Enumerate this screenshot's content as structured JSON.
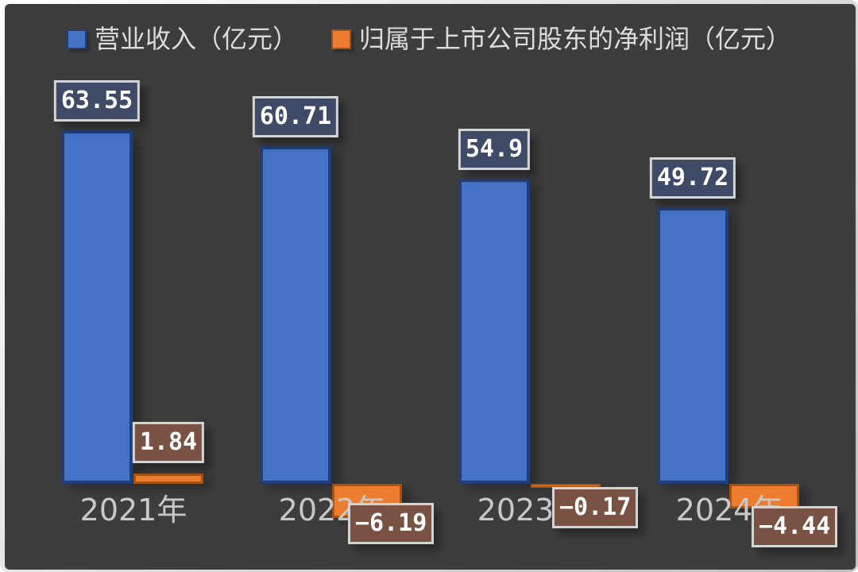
{
  "chart_data": {
    "type": "bar",
    "title": "",
    "categories": [
      "2021年",
      "2022年",
      "2023年",
      "2024年"
    ],
    "series": [
      {
        "name": "营业收入（亿元）",
        "color": "#4472c4",
        "values": [
          63.55,
          60.71,
          54.9,
          49.72
        ],
        "labels": [
          "63.55",
          "60.71",
          "54.9",
          "49.72"
        ]
      },
      {
        "name": "归属于上市公司股东的净利润（亿元）",
        "color": "#ed7d31",
        "values": [
          1.84,
          -6.19,
          -0.17,
          -4.44
        ],
        "labels": [
          "1.84",
          "−6.19",
          "−0.17",
          "−4.44"
        ]
      }
    ],
    "legend_position": "top",
    "grid": false,
    "baseline_value": 0,
    "ylim": [
      -7,
      70
    ]
  },
  "colors": {
    "background": "#3d3d3d",
    "frame": "#ffffff",
    "revenue_fill": "#4472c4",
    "revenue_border": "#223f77",
    "profit_fill": "#ed7d31",
    "profit_border": "#a8520d",
    "value_label_border": "#d4d4d4",
    "revenue_label_bg": "#3e4a66",
    "profit_label_bg": "#795243",
    "value_label_text": "#ffffff",
    "legend_text": "#dcdcdc",
    "axis_label_text": "#c8c8c8"
  }
}
